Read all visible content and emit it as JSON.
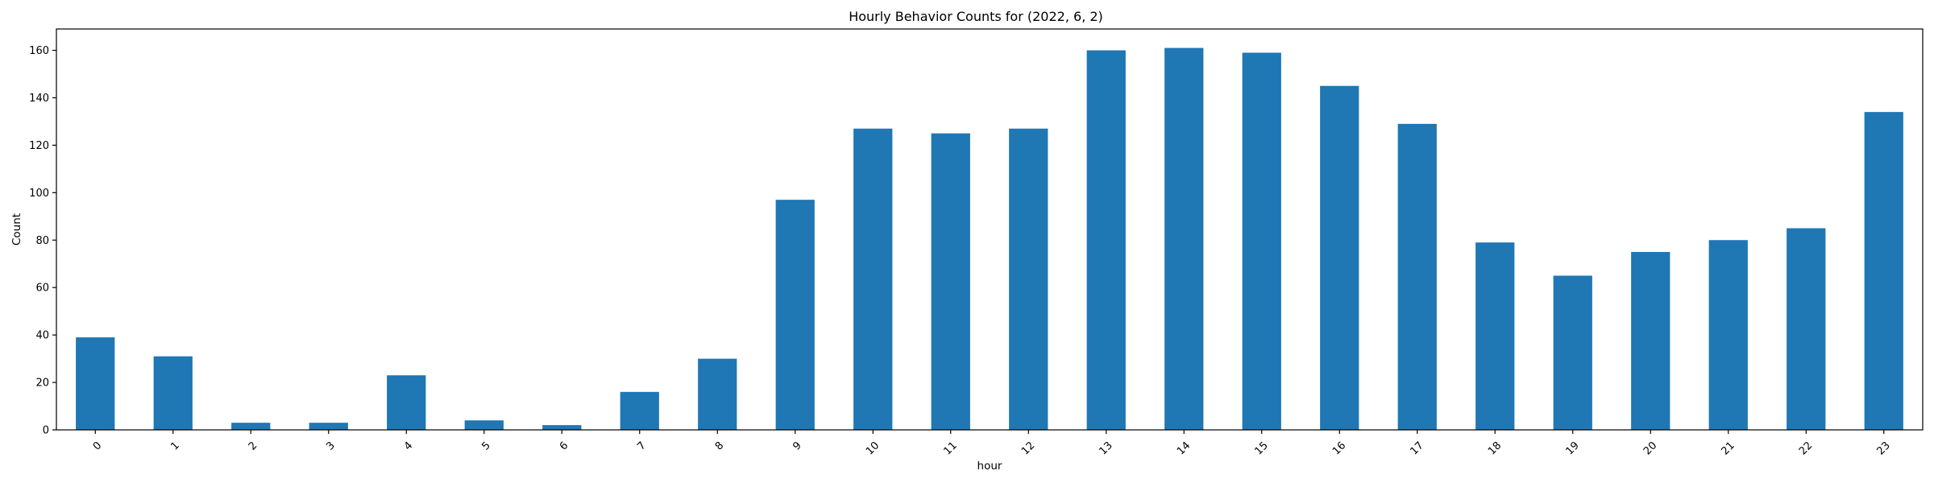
{
  "chart_data": {
    "type": "bar",
    "title": "Hourly Behavior Counts for (2022, 6, 2)",
    "xlabel": "hour",
    "ylabel": "Count",
    "categories": [
      "0",
      "1",
      "2",
      "3",
      "4",
      "5",
      "6",
      "7",
      "8",
      "9",
      "10",
      "11",
      "12",
      "13",
      "14",
      "15",
      "16",
      "17",
      "18",
      "19",
      "20",
      "21",
      "22",
      "23"
    ],
    "values": [
      39,
      31,
      3,
      3,
      23,
      4,
      2,
      16,
      30,
      97,
      127,
      125,
      127,
      160,
      161,
      159,
      145,
      129,
      79,
      65,
      75,
      80,
      85,
      134
    ],
    "ylim": [
      0,
      169
    ],
    "yticks": [
      0,
      20,
      40,
      60,
      80,
      100,
      120,
      140,
      160
    ],
    "ytick_labels": [
      "0",
      "20",
      "40",
      "60",
      "80",
      "100",
      "120",
      "140",
      "160"
    ],
    "xtick_rotation": 45,
    "bar_color": "#1f77b4",
    "grid": false,
    "legend": "none"
  }
}
